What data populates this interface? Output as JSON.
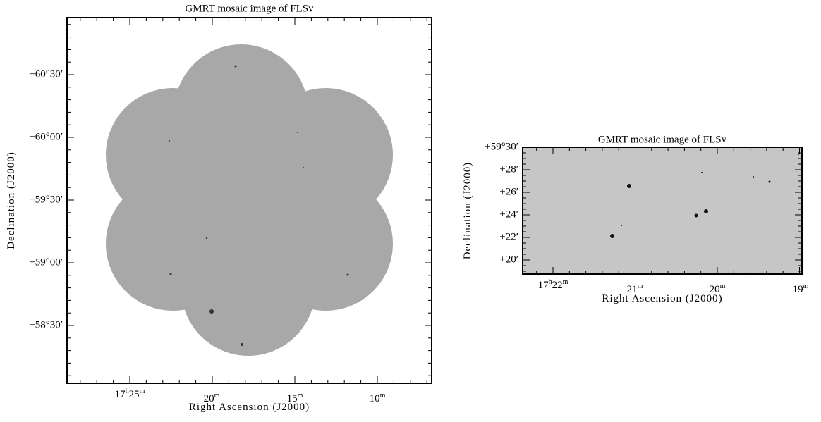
{
  "panels": [
    {
      "title": "GMRT mosaic image of FLSv",
      "xlabel": "Right Ascension (J2000)",
      "ylabel": "Declination (J2000)",
      "xticks": [
        [
          "17",
          "h",
          "25",
          "m"
        ],
        [
          "",
          "",
          "20",
          "m"
        ],
        [
          "",
          "",
          "15",
          "m"
        ],
        [
          "",
          "",
          "10",
          "m"
        ]
      ],
      "yticks": [
        "+60°30′",
        "+60°00′",
        "+59°30′",
        "+59°00′",
        "+58°30′"
      ]
    },
    {
      "title": "GMRT mosaic image of FLSv",
      "xlabel": "Right Ascension (J2000)",
      "ylabel": "Declination (J2000)",
      "xticks": [
        [
          "17",
          "h",
          "22",
          "m"
        ],
        [
          "",
          "",
          "21",
          "m"
        ],
        [
          "",
          "",
          "20",
          "m"
        ],
        [
          "",
          "",
          "19",
          "m"
        ]
      ],
      "yticks": [
        "+59°30′",
        "+28′",
        "+26′",
        "+24′",
        "+22′",
        "+20′"
      ]
    }
  ]
}
